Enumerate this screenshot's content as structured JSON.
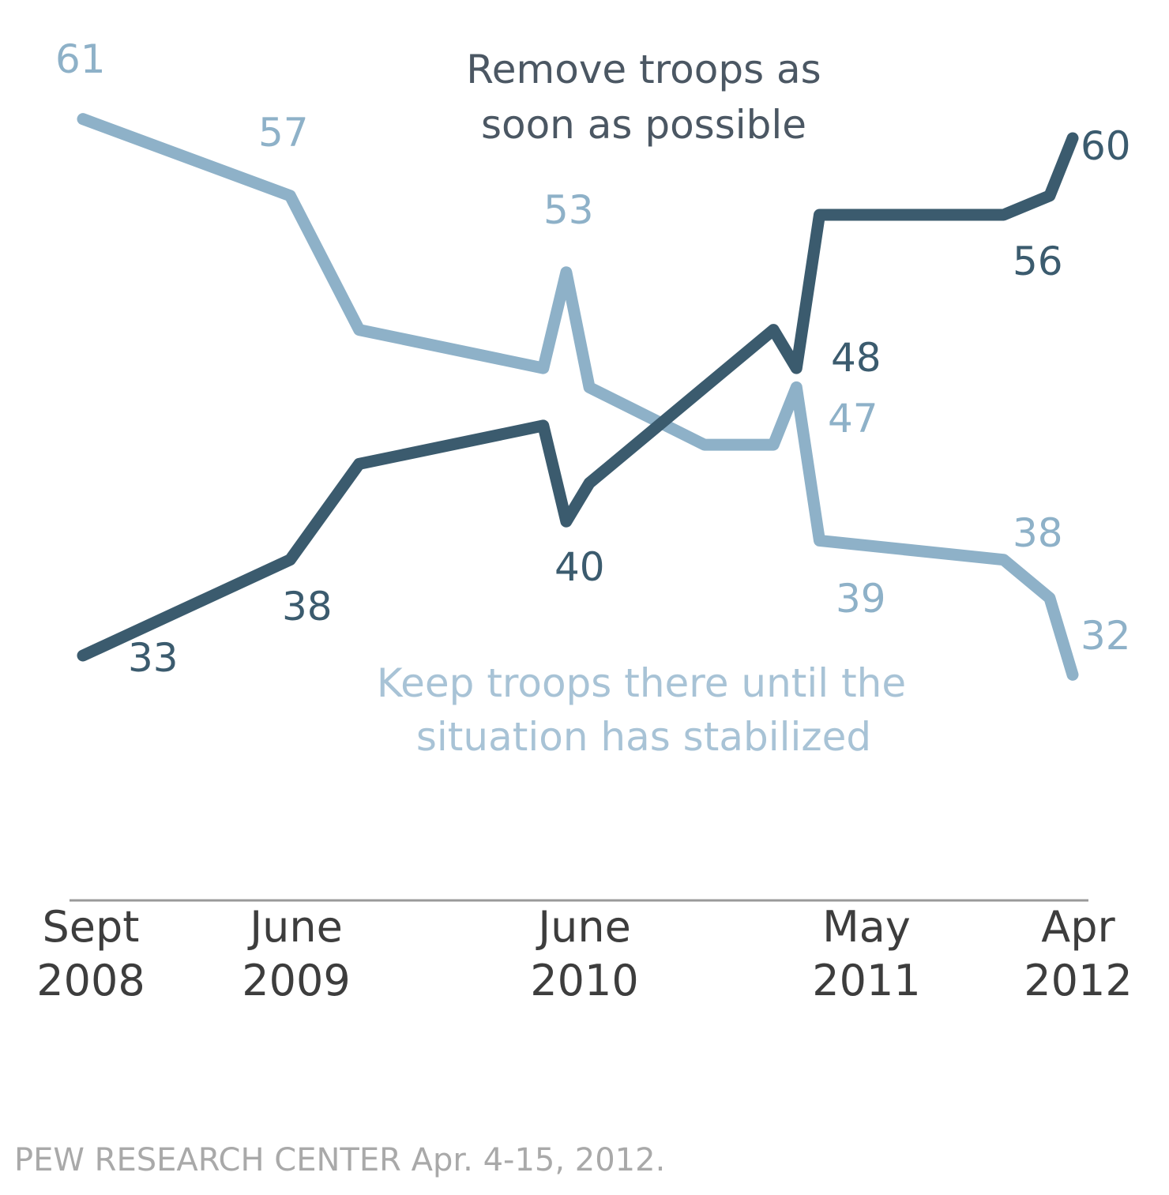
{
  "chart_data": {
    "type": "line",
    "title": "",
    "xlabel": "",
    "ylabel": "",
    "x_ticks": [
      {
        "month": "Sept",
        "year": "2008",
        "date": "2008-09"
      },
      {
        "month": "June",
        "year": "2009",
        "date": "2009-06"
      },
      {
        "month": "June",
        "year": "2010",
        "date": "2010-06"
      },
      {
        "month": "May",
        "year": "2011",
        "date": "2011-05"
      },
      {
        "month": "Apr",
        "year": "2012",
        "date": "2012-04"
      }
    ],
    "grid": false,
    "y_axis_visible": false,
    "series": [
      {
        "name": "Remove troops as soon as possible",
        "name_lines": [
          "Remove troops as",
          "soon as possible"
        ],
        "color": "#3b5b6e",
        "points": [
          {
            "x": "2008-09",
            "y": 33
          },
          {
            "x": "2009-06",
            "y": 38
          },
          {
            "x": "2009-09",
            "y": 43
          },
          {
            "x": "2010-05",
            "y": 45
          },
          {
            "x": "2010-06",
            "y": 40
          },
          {
            "x": "2010-07",
            "y": 42
          },
          {
            "x": "2010-12",
            "y": 47
          },
          {
            "x": "2011-03",
            "y": 50
          },
          {
            "x": "2011-04",
            "y": 48
          },
          {
            "x": "2011-05",
            "y": 56
          },
          {
            "x": "2012-01",
            "y": 56
          },
          {
            "x": "2012-03",
            "y": 57
          },
          {
            "x": "2012-04",
            "y": 60
          }
        ],
        "data_labels": [
          "33",
          "38",
          "40",
          "48",
          "56",
          "60"
        ]
      },
      {
        "name": "Keep troops there until the situation has stabilized",
        "name_lines": [
          "Keep troops there until the",
          "situation has stabilized"
        ],
        "color": "#8eb1c8",
        "points": [
          {
            "x": "2008-09",
            "y": 61
          },
          {
            "x": "2009-06",
            "y": 57
          },
          {
            "x": "2009-09",
            "y": 50
          },
          {
            "x": "2010-05",
            "y": 48
          },
          {
            "x": "2010-06",
            "y": 53
          },
          {
            "x": "2010-07",
            "y": 47
          },
          {
            "x": "2010-12",
            "y": 44
          },
          {
            "x": "2011-03",
            "y": 44
          },
          {
            "x": "2011-04",
            "y": 47
          },
          {
            "x": "2011-05",
            "y": 39
          },
          {
            "x": "2012-01",
            "y": 38
          },
          {
            "x": "2012-03",
            "y": 36
          },
          {
            "x": "2012-04",
            "y": 32
          }
        ],
        "data_labels": [
          "61",
          "57",
          "53",
          "47",
          "39",
          "38",
          "32"
        ]
      }
    ],
    "source": "PEW RESEARCH  CENTER Apr. 4-15, 2012."
  }
}
